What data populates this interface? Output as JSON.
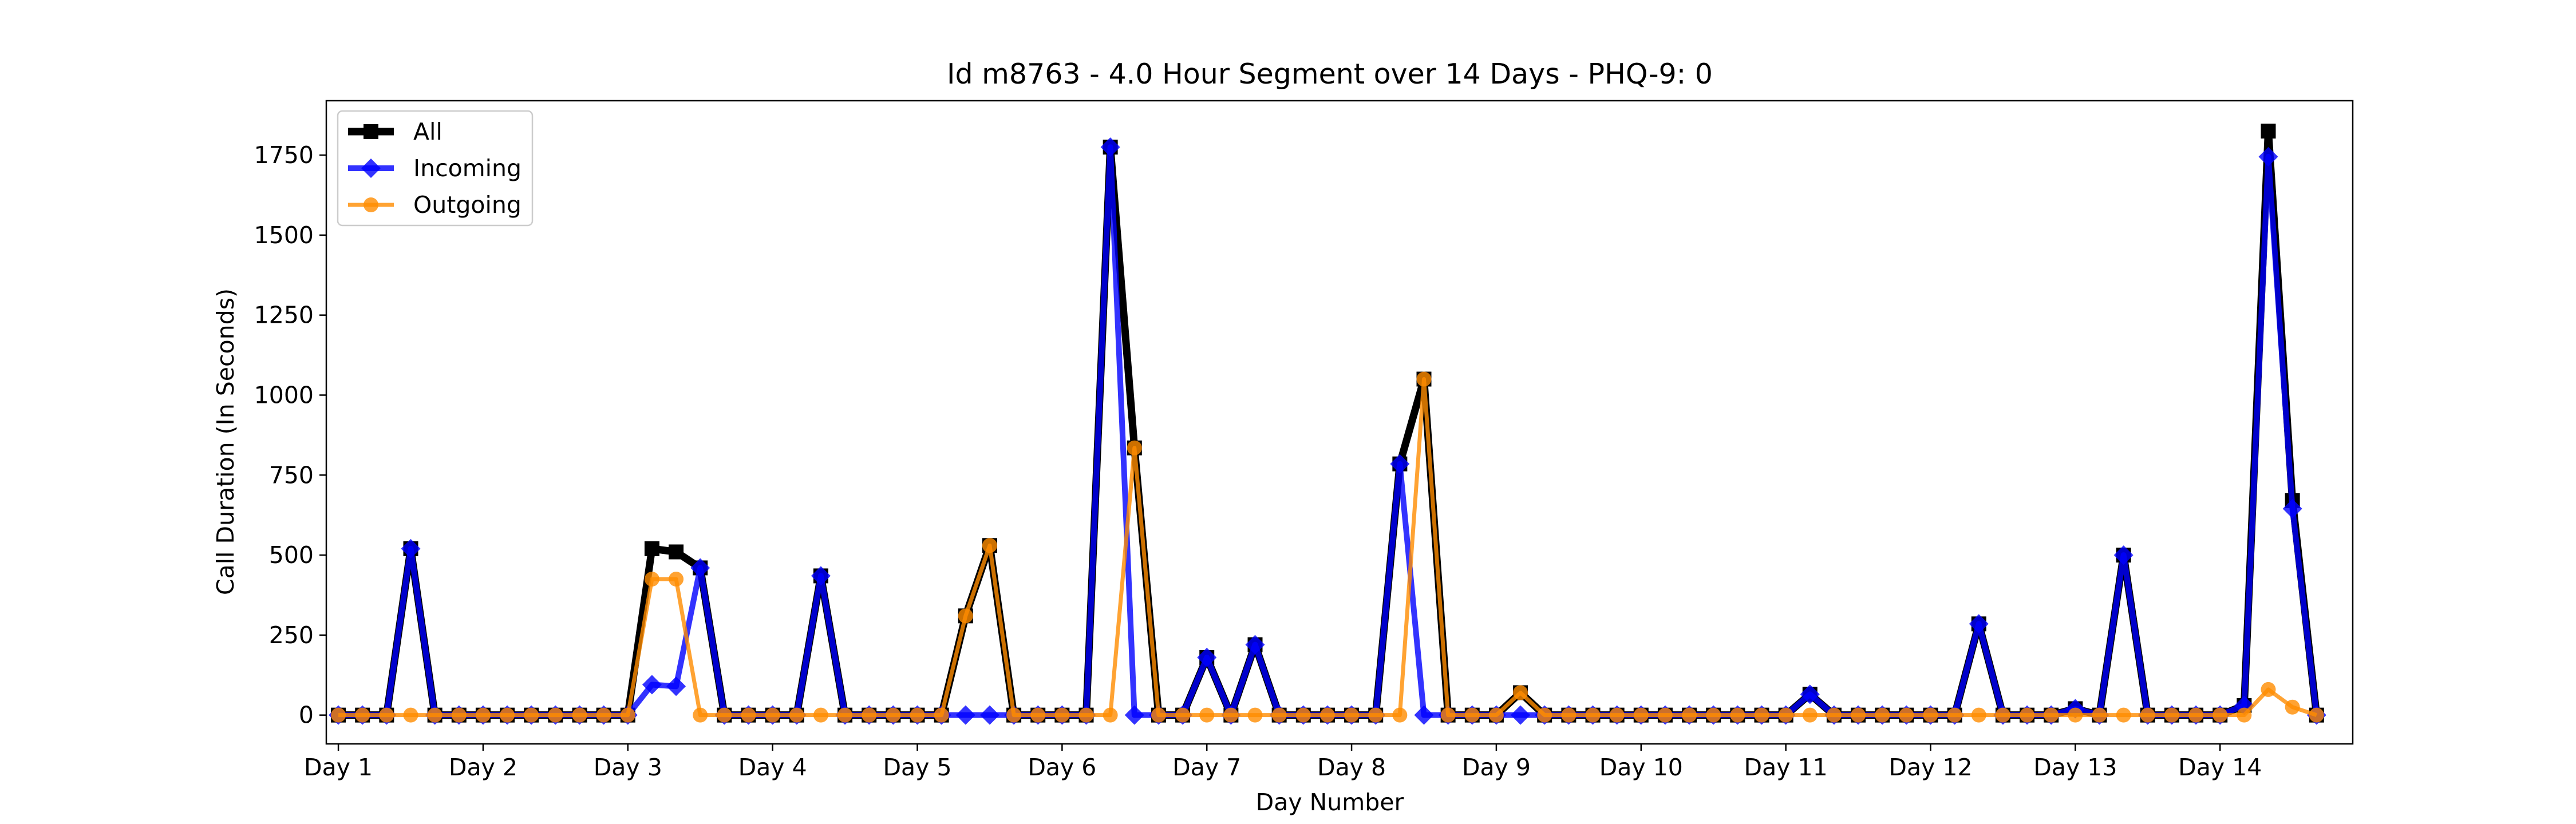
{
  "chart_data": {
    "type": "line",
    "title": "Id m8763 - 4.0 Hour Segment over 14 Days - PHQ-9: 0",
    "xlabel": "Day Number",
    "ylabel": "Call Duration (In Seconds)",
    "xlim": [
      -0.5,
      83.5
    ],
    "ylim": [
      -90,
      1920
    ],
    "xticks": [
      {
        "value": 0,
        "label": "Day 1"
      },
      {
        "value": 6,
        "label": "Day 2"
      },
      {
        "value": 12,
        "label": "Day 3"
      },
      {
        "value": 18,
        "label": "Day 4"
      },
      {
        "value": 24,
        "label": "Day 5"
      },
      {
        "value": 30,
        "label": "Day 6"
      },
      {
        "value": 36,
        "label": "Day 7"
      },
      {
        "value": 42,
        "label": "Day 8"
      },
      {
        "value": 48,
        "label": "Day 9"
      },
      {
        "value": 54,
        "label": "Day 10"
      },
      {
        "value": 60,
        "label": "Day 11"
      },
      {
        "value": 66,
        "label": "Day 12"
      },
      {
        "value": 72,
        "label": "Day 13"
      },
      {
        "value": 78,
        "label": "Day 14"
      }
    ],
    "yticks": [
      {
        "value": 0,
        "label": "0"
      },
      {
        "value": 250,
        "label": "250"
      },
      {
        "value": 500,
        "label": "500"
      },
      {
        "value": 750,
        "label": "750"
      },
      {
        "value": 1000,
        "label": "1000"
      },
      {
        "value": 1250,
        "label": "1250"
      },
      {
        "value": 1500,
        "label": "1500"
      },
      {
        "value": 1750,
        "label": "1750"
      }
    ],
    "legend_position": "top-left",
    "series": [
      {
        "name": "All",
        "color": "#000000",
        "marker": "square",
        "values": [
          0,
          0,
          0,
          520,
          0,
          0,
          0,
          0,
          0,
          0,
          0,
          0,
          0,
          520,
          510,
          460,
          0,
          0,
          0,
          0,
          435,
          0,
          0,
          0,
          0,
          0,
          310,
          530,
          0,
          0,
          0,
          0,
          1775,
          835,
          0,
          0,
          180,
          0,
          220,
          0,
          0,
          0,
          0,
          0,
          785,
          1050,
          0,
          0,
          0,
          70,
          0,
          0,
          0,
          0,
          0,
          0,
          0,
          0,
          0,
          0,
          0,
          65,
          0,
          0,
          0,
          0,
          0,
          0,
          285,
          0,
          0,
          0,
          20,
          0,
          500,
          0,
          0,
          0,
          0,
          30,
          1825,
          670,
          0
        ]
      },
      {
        "name": "Incoming",
        "color": "#0000ff",
        "marker": "diamond",
        "values": [
          0,
          0,
          0,
          520,
          0,
          0,
          0,
          0,
          0,
          0,
          0,
          0,
          0,
          95,
          90,
          460,
          0,
          0,
          0,
          0,
          435,
          0,
          0,
          0,
          0,
          0,
          0,
          0,
          0,
          0,
          0,
          0,
          1775,
          0,
          0,
          0,
          180,
          0,
          220,
          0,
          0,
          0,
          0,
          0,
          785,
          0,
          0,
          0,
          0,
          0,
          0,
          0,
          0,
          0,
          0,
          0,
          0,
          0,
          0,
          0,
          0,
          65,
          0,
          0,
          0,
          0,
          0,
          0,
          285,
          0,
          0,
          0,
          20,
          0,
          500,
          0,
          0,
          0,
          0,
          30,
          1745,
          645,
          0
        ]
      },
      {
        "name": "Outgoing",
        "color": "#ff8c00",
        "marker": "circle",
        "values": [
          0,
          0,
          0,
          0,
          0,
          0,
          0,
          0,
          0,
          0,
          0,
          0,
          0,
          425,
          425,
          0,
          0,
          0,
          0,
          0,
          0,
          0,
          0,
          0,
          0,
          0,
          310,
          530,
          0,
          0,
          0,
          0,
          0,
          835,
          0,
          0,
          0,
          0,
          0,
          0,
          0,
          0,
          0,
          0,
          0,
          1050,
          0,
          0,
          0,
          70,
          0,
          0,
          0,
          0,
          0,
          0,
          0,
          0,
          0,
          0,
          0,
          0,
          0,
          0,
          0,
          0,
          0,
          0,
          0,
          0,
          0,
          0,
          0,
          0,
          0,
          0,
          0,
          0,
          0,
          0,
          80,
          25,
          0
        ]
      }
    ]
  }
}
